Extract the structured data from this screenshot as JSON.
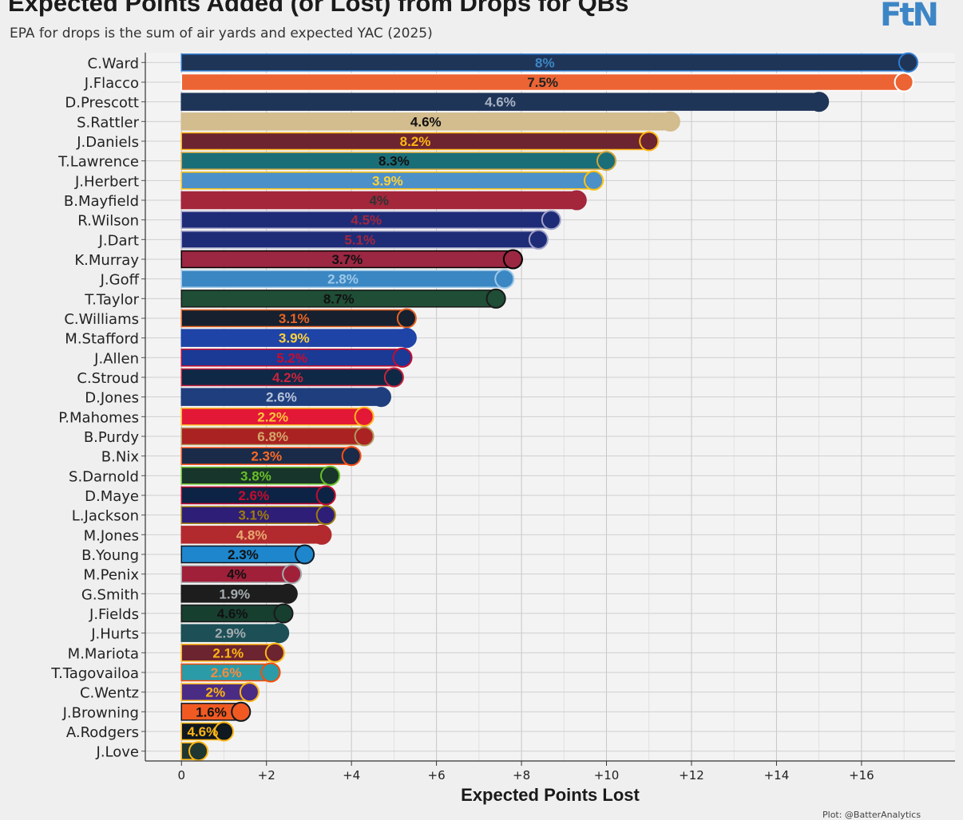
{
  "header": {
    "title": "Expected Points Added (or Lost) from Drops for QBs",
    "subtitle": "EPA for drops is the sum of air yards and expected YAC (2025)",
    "brand": "FtN",
    "credit": "Plot: @BatterAnalytics"
  },
  "chart_data": {
    "type": "bar",
    "orientation": "horizontal",
    "title": "Expected Points Added (or Lost) from Drops for QBs",
    "subtitle": "EPA for drops is the sum of air yards and expected YAC (2025)",
    "xlabel": "Expected Points Lost",
    "ylabel": "",
    "xlim": [
      -0.85,
      18.2
    ],
    "x_ticks": [
      0,
      2,
      4,
      6,
      8,
      10,
      12,
      14,
      16
    ],
    "x_tick_labels": [
      "0",
      "+2",
      "+4",
      "+6",
      "+8",
      "+10",
      "+12",
      "+14",
      "+16"
    ],
    "grid": true,
    "legend": "none",
    "categories": [
      "C.Ward",
      "J.Flacco",
      "D.Prescott",
      "S.Rattler",
      "J.Daniels",
      "T.Lawrence",
      "J.Herbert",
      "B.Mayfield",
      "R.Wilson",
      "J.Dart",
      "K.Murray",
      "J.Goff",
      "T.Taylor",
      "C.Williams",
      "M.Stafford",
      "J.Allen",
      "C.Stroud",
      "D.Jones",
      "P.Mahomes",
      "B.Purdy",
      "B.Nix",
      "S.Darnold",
      "D.Maye",
      "L.Jackson",
      "M.Jones",
      "B.Young",
      "M.Penix",
      "G.Smith",
      "J.Fields",
      "J.Hurts",
      "M.Mariota",
      "T.Tagovailoa",
      "C.Wentz",
      "J.Browning",
      "A.Rodgers",
      "J.Love"
    ],
    "values": [
      17.1,
      17.0,
      15.0,
      11.5,
      11.0,
      10.0,
      9.7,
      9.3,
      8.7,
      8.4,
      7.8,
      7.6,
      7.4,
      5.3,
      5.3,
      5.2,
      5.0,
      4.7,
      4.3,
      4.3,
      4.0,
      3.5,
      3.4,
      3.4,
      3.3,
      2.9,
      2.6,
      2.5,
      2.4,
      2.3,
      2.2,
      2.1,
      1.6,
      1.4,
      1.0,
      0.4
    ],
    "data_labels": [
      "8%",
      "7.5%",
      "4.6%",
      "4.6%",
      "8.2%",
      "8.3%",
      "3.9%",
      "4%",
      "4.5%",
      "5.1%",
      "3.7%",
      "2.8%",
      "8.7%",
      "3.1%",
      "3.9%",
      "5.2%",
      "4.2%",
      "2.6%",
      "2.2%",
      "6.8%",
      "2.3%",
      "3.8%",
      "2.6%",
      "3.1%",
      "4.8%",
      "2.3%",
      "4%",
      "1.9%",
      "4.6%",
      "2.9%",
      "2.1%",
      "2.6%",
      "2%",
      "1.6%",
      "4.6%",
      ""
    ],
    "colors": [
      "#1f3558",
      "#ec6434",
      "#1f3558",
      "#d3bc8d",
      "#6b2430",
      "#1a6e78",
      "#4b90c9",
      "#a3263b",
      "#1e2c78",
      "#1e2c78",
      "#9b2743",
      "#3b87c3",
      "#1f4d36",
      "#16202e",
      "#1f44a8",
      "#1a3a96",
      "#0f2845",
      "#1f3e7e",
      "#e31837",
      "#aa2222",
      "#1a2b4a",
      "#17352a",
      "#0c2345",
      "#2e1e78",
      "#b22a2d",
      "#1e86cc",
      "#a0203a",
      "#1d1d1d",
      "#173f30",
      "#1c4f56",
      "#6b2430",
      "#2b9ba8",
      "#4a2c85",
      "#f05a22",
      "#101820",
      "#203731"
    ],
    "border_colors": [
      "#2d7bd2",
      "#ffffff",
      "#1f3558",
      "#d3bc8d",
      "#ffb612",
      "#d1a53c",
      "#ffc20e",
      "#a3263b",
      "#a3a3c8",
      "#a3a3c8",
      "#000000",
      "#9ec8e8",
      "#1a1a1a",
      "#e86223",
      "#1f44a8",
      "#c60c30",
      "#c9243f",
      "#1f3e7e",
      "#ffb81c",
      "#b3995d",
      "#fb4f14",
      "#69be28",
      "#c60c30",
      "#9e7c0c",
      "#b22a2d",
      "#101820",
      "#a5acaf",
      "#1d1d1d",
      "#1a1a1a",
      "#1c4f56",
      "#ffb612",
      "#fc4c02",
      "#ffb612",
      "#101820",
      "#ffb612",
      "#ffb612"
    ],
    "label_colors": [
      "#3d86c6",
      "#222222",
      "#a8b2c4",
      "#111111",
      "#ffb612",
      "#111111",
      "#ffd23a",
      "#333333",
      "#a3263b",
      "#a3263b",
      "#111111",
      "#9ec8e8",
      "#111111",
      "#e86223",
      "#ffd23a",
      "#c60c30",
      "#c9243f",
      "#b8c4d8",
      "#ffc43a",
      "#d4a76a",
      "#fb6a24",
      "#69be28",
      "#c60c30",
      "#9e7c0c",
      "#e8a870",
      "#111111",
      "#111111",
      "#a5acaf",
      "#111111",
      "#a5acaf",
      "#ffb612",
      "#fc8a3a",
      "#ffb612",
      "#111111",
      "#ffb612",
      "#ffb612"
    ],
    "logos": [
      "titans",
      "browns",
      "cowboys",
      "saints",
      "commanders",
      "jaguars",
      "chargers",
      "buccaneers",
      "giants",
      "giants",
      "cardinals",
      "lions",
      "jets",
      "bears",
      "rams",
      "bills",
      "texans",
      "colts",
      "chiefs",
      "49ers",
      "broncos",
      "seahawks",
      "patriots",
      "ravens",
      "49ers",
      "panthers",
      "falcons",
      "raiders",
      "steelers",
      "eagles",
      "commanders",
      "dolphins",
      "vikings",
      "bengals",
      "steelers",
      "packers"
    ]
  }
}
